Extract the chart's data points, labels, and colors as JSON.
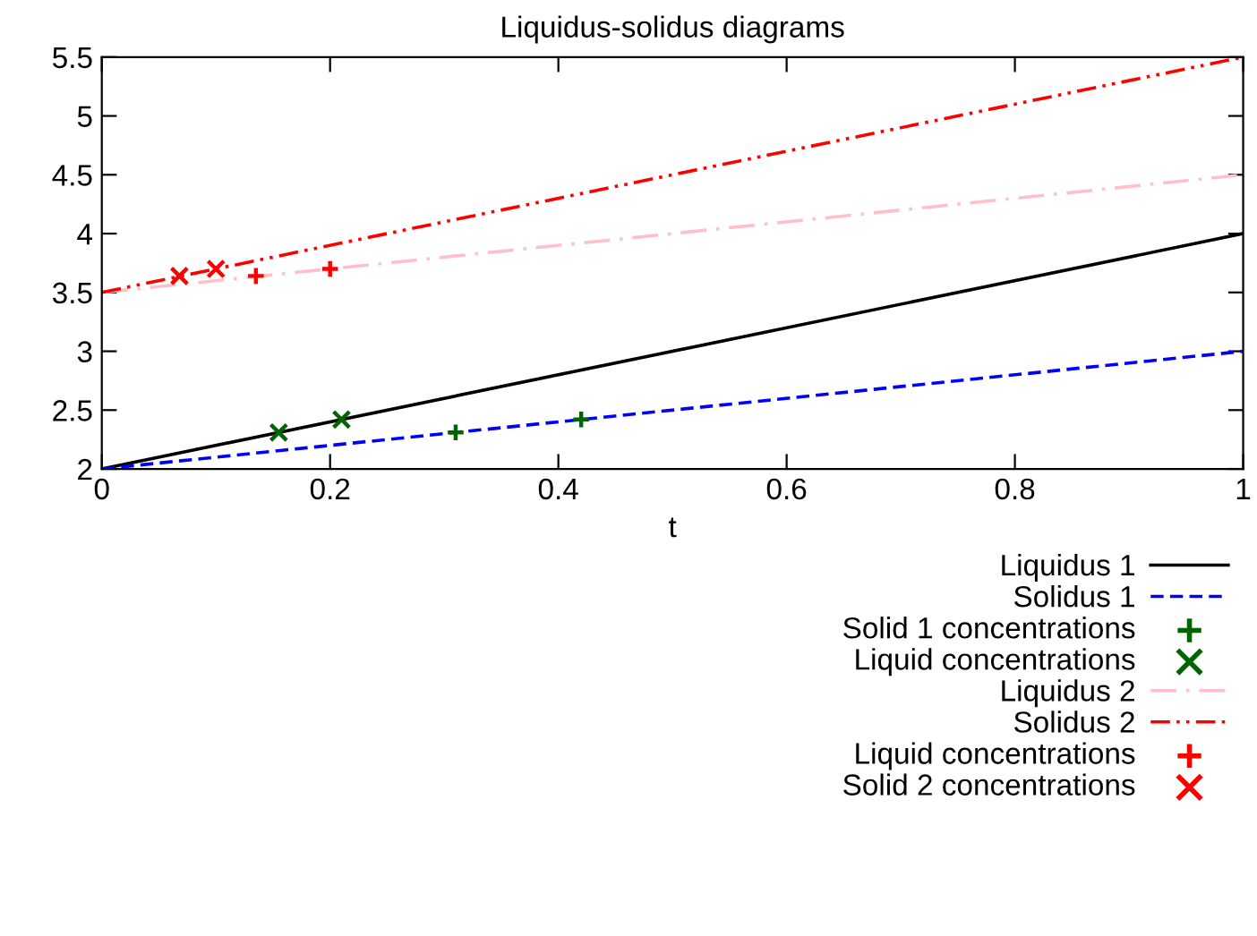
{
  "chart_data": {
    "type": "line",
    "title": "Liquidus-solidus diagrams",
    "xlabel": "t",
    "xlim": [
      0,
      1
    ],
    "xticks": [
      0,
      0.2,
      0.4,
      0.6,
      0.8,
      1
    ],
    "ylim": [
      2,
      5.5
    ],
    "yticks": [
      2,
      2.5,
      3,
      3.5,
      4,
      4.5,
      5,
      5.5
    ],
    "grid": false,
    "legend": "bottom right",
    "series": [
      {
        "name": "Liquidus 1",
        "color": "#000000",
        "line_style": "solid",
        "x": [
          0,
          1
        ],
        "values": [
          2,
          4
        ]
      },
      {
        "name": "Solidus 1",
        "color": "#0000ff",
        "line_style": "dashed",
        "x": [
          0,
          1
        ],
        "values": [
          2,
          3
        ]
      },
      {
        "name": "Solid 1 concentrations",
        "type": "scatter",
        "marker": "plus",
        "color": "#006400",
        "x": [
          0.31,
          0.42
        ],
        "values": [
          2.31,
          2.42
        ]
      },
      {
        "name": "Liquid concentrations",
        "type": "scatter",
        "marker": "cross",
        "color": "#006400",
        "x": [
          0.155,
          0.21
        ],
        "values": [
          2.31,
          2.42
        ]
      },
      {
        "name": "Liquidus 2",
        "color": "#ffc0cb",
        "line_style": "dashdot",
        "x": [
          0,
          1
        ],
        "values": [
          3.5,
          4.5
        ]
      },
      {
        "name": "Solidus 2",
        "color": "#ff0000",
        "line_style": "dashdotdot",
        "x": [
          0,
          1
        ],
        "values": [
          3.5,
          5.5
        ]
      },
      {
        "name": "Liquid concentrations",
        "type": "scatter",
        "marker": "plus",
        "color": "#ff0000",
        "x": [
          0.135,
          0.2
        ],
        "values": [
          3.64,
          3.7
        ]
      },
      {
        "name": "Solid 2 concentrations",
        "type": "scatter",
        "marker": "cross",
        "color": "#ff0000",
        "x": [
          0.068,
          0.1
        ],
        "values": [
          3.64,
          3.7
        ]
      }
    ]
  }
}
